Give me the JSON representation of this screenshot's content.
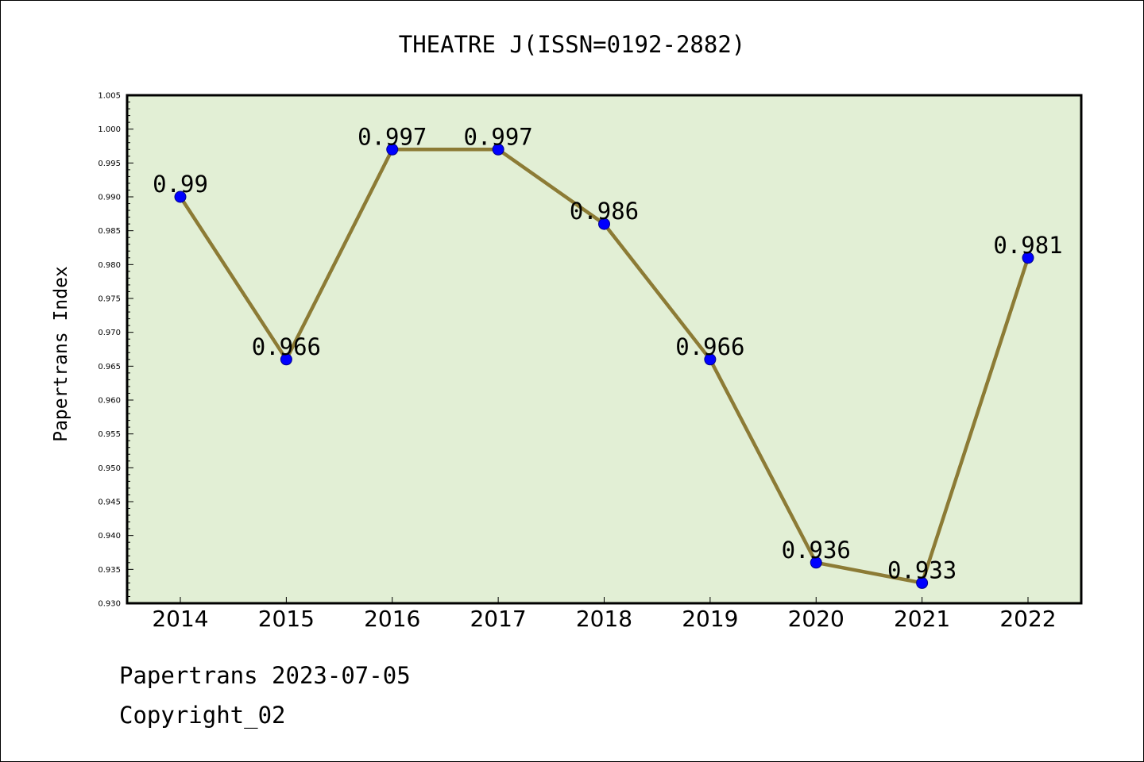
{
  "chart_data": {
    "type": "line",
    "title": "THEATRE J(ISSN=0192-2882)",
    "xlabel": "",
    "ylabel": "Papertrans Index",
    "categories": [
      "2014",
      "2015",
      "2016",
      "2017",
      "2018",
      "2019",
      "2020",
      "2021",
      "2022"
    ],
    "values": [
      0.99,
      0.966,
      0.997,
      0.997,
      0.986,
      0.966,
      0.936,
      0.933,
      0.981
    ],
    "data_labels": [
      "0.99",
      "0.966",
      "0.997",
      "0.997",
      "0.986",
      "0.966",
      "0.936",
      "0.933",
      "0.981"
    ],
    "ylim": [
      0.93,
      1.005
    ],
    "yticks": [
      "0.930",
      "0.935",
      "0.940",
      "0.945",
      "0.950",
      "0.955",
      "0.960",
      "0.965",
      "0.970",
      "0.975",
      "0.980",
      "0.985",
      "0.990",
      "0.995",
      "1.000",
      "1.005"
    ],
    "grid": false,
    "legend": "none",
    "colors": {
      "plot_background": "#e2efd5",
      "line": "#8c7b35",
      "marker": "#0000ff",
      "axes": "#000000"
    }
  },
  "footer": {
    "line1": "Papertrans 2023-07-05",
    "line2": "Copyright_02"
  }
}
